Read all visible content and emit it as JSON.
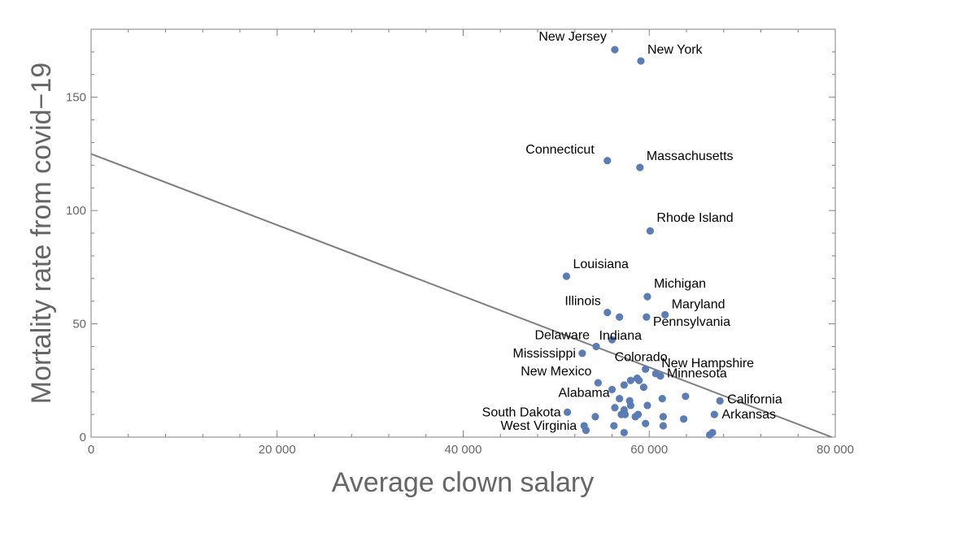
{
  "chart_data": {
    "type": "scatter",
    "xlabel": "Average clown salary",
    "ylabel": "Mortality rate from covid−19",
    "xlim": [
      0,
      80000
    ],
    "ylim": [
      0,
      180
    ],
    "x_ticks": [
      0,
      20000,
      40000,
      60000,
      80000
    ],
    "x_tick_labels": [
      "0",
      "20 000",
      "40 000",
      "60 000",
      "80 000"
    ],
    "y_ticks": [
      0,
      50,
      100,
      150
    ],
    "y_tick_labels": [
      "0",
      "50",
      "100",
      "150"
    ],
    "grid": false,
    "frame": true,
    "colors": {
      "points": "#5b7db5",
      "fit_line": "#7f7f7f",
      "axis": "#808080",
      "text": "#666666"
    },
    "fit_line": {
      "slope": -0.00157,
      "intercept": 125
    },
    "points": [
      {
        "x": 56300,
        "y": 171,
        "label": "New Jersey"
      },
      {
        "x": 59100,
        "y": 166,
        "label": "New York"
      },
      {
        "x": 55500,
        "y": 122,
        "label": "Connecticut"
      },
      {
        "x": 59000,
        "y": 119,
        "label": "Massachusetts"
      },
      {
        "x": 60100,
        "y": 91,
        "label": "Rhode Island"
      },
      {
        "x": 51100,
        "y": 71,
        "label": "Louisiana"
      },
      {
        "x": 59800,
        "y": 62,
        "label": "Michigan"
      },
      {
        "x": 55500,
        "y": 55,
        "label": "Illinois"
      },
      {
        "x": 61700,
        "y": 54,
        "label": "Maryland"
      },
      {
        "x": 56800,
        "y": 53,
        "label": ""
      },
      {
        "x": 59700,
        "y": 53,
        "label": "Pennsylvania"
      },
      {
        "x": 54300,
        "y": 40,
        "label": "Delaware"
      },
      {
        "x": 56000,
        "y": 43,
        "label": "Indiana"
      },
      {
        "x": 52800,
        "y": 37,
        "label": "Mississippi"
      },
      {
        "x": 59600,
        "y": 30,
        "label": "Colorado"
      },
      {
        "x": 60700,
        "y": 28,
        "label": "New Hampshire"
      },
      {
        "x": 61200,
        "y": 27,
        "label": "Minnesota"
      },
      {
        "x": 58700,
        "y": 26,
        "label": ""
      },
      {
        "x": 58000,
        "y": 25,
        "label": ""
      },
      {
        "x": 58900,
        "y": 25,
        "label": ""
      },
      {
        "x": 54500,
        "y": 24,
        "label": "New Mexico"
      },
      {
        "x": 57300,
        "y": 23,
        "label": ""
      },
      {
        "x": 59400,
        "y": 22,
        "label": ""
      },
      {
        "x": 56000,
        "y": 21,
        "label": ""
      },
      {
        "x": 63900,
        "y": 18,
        "label": ""
      },
      {
        "x": 56800,
        "y": 17,
        "label": "Alabama"
      },
      {
        "x": 61400,
        "y": 17,
        "label": ""
      },
      {
        "x": 67600,
        "y": 16,
        "label": "California"
      },
      {
        "x": 57900,
        "y": 16,
        "label": ""
      },
      {
        "x": 58000,
        "y": 14,
        "label": ""
      },
      {
        "x": 59800,
        "y": 14,
        "label": ""
      },
      {
        "x": 56300,
        "y": 13,
        "label": ""
      },
      {
        "x": 57300,
        "y": 12,
        "label": ""
      },
      {
        "x": 51200,
        "y": 11,
        "label": "South Dakota"
      },
      {
        "x": 67000,
        "y": 10,
        "label": "Arkansas"
      },
      {
        "x": 57400,
        "y": 10,
        "label": ""
      },
      {
        "x": 57000,
        "y": 10,
        "label": ""
      },
      {
        "x": 58800,
        "y": 10,
        "label": ""
      },
      {
        "x": 54200,
        "y": 9,
        "label": ""
      },
      {
        "x": 61500,
        "y": 9,
        "label": ""
      },
      {
        "x": 63700,
        "y": 8,
        "label": ""
      },
      {
        "x": 58500,
        "y": 9,
        "label": ""
      },
      {
        "x": 59600,
        "y": 6,
        "label": ""
      },
      {
        "x": 61500,
        "y": 5,
        "label": ""
      },
      {
        "x": 56200,
        "y": 5,
        "label": ""
      },
      {
        "x": 53000,
        "y": 5,
        "label": "West Virginia"
      },
      {
        "x": 53200,
        "y": 3,
        "label": ""
      },
      {
        "x": 57300,
        "y": 2,
        "label": ""
      },
      {
        "x": 66800,
        "y": 2,
        "label": ""
      },
      {
        "x": 66500,
        "y": 1,
        "label": ""
      }
    ]
  }
}
